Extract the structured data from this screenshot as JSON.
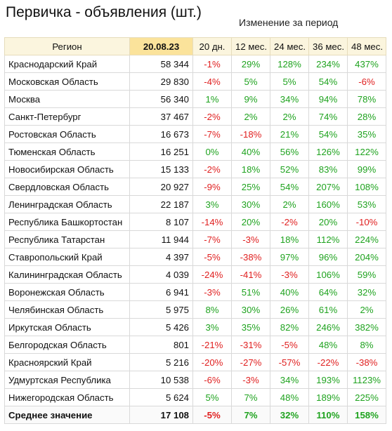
{
  "title": "Первичка - объявления (шт.)",
  "subtitle": "Изменение за период",
  "columns": [
    "Регион",
    "20.08.23",
    "20 дн.",
    "12 мес.",
    "24 мес.",
    "36 мес.",
    "48 мес."
  ],
  "colors": {
    "positive": "#1fa31f",
    "negative": "#e02020",
    "header_bg": "#fbf5de",
    "date_header_bg": "#fbe39b"
  },
  "rows": [
    {
      "region": "Краснодарский Край",
      "count": "58 344",
      "changes": [
        "-1%",
        "29%",
        "128%",
        "234%",
        "437%"
      ]
    },
    {
      "region": "Московская Область",
      "count": "29 830",
      "changes": [
        "-4%",
        "5%",
        "5%",
        "54%",
        "-6%"
      ]
    },
    {
      "region": "Москва",
      "count": "56 340",
      "changes": [
        "1%",
        "9%",
        "34%",
        "94%",
        "78%"
      ]
    },
    {
      "region": "Санкт-Петербург",
      "count": "37 467",
      "changes": [
        "-2%",
        "2%",
        "2%",
        "74%",
        "28%"
      ]
    },
    {
      "region": "Ростовская Область",
      "count": "16 673",
      "changes": [
        "-7%",
        "-18%",
        "21%",
        "54%",
        "35%"
      ]
    },
    {
      "region": "Тюменская Область",
      "count": "16 251",
      "changes": [
        "0%",
        "40%",
        "56%",
        "126%",
        "122%"
      ]
    },
    {
      "region": "Новосибирская Область",
      "count": "15 133",
      "changes": [
        "-2%",
        "18%",
        "52%",
        "83%",
        "99%"
      ]
    },
    {
      "region": "Свердловская Область",
      "count": "20 927",
      "changes": [
        "-9%",
        "25%",
        "54%",
        "207%",
        "108%"
      ]
    },
    {
      "region": "Ленинградская Область",
      "count": "22 187",
      "changes": [
        "3%",
        "30%",
        "2%",
        "160%",
        "53%"
      ]
    },
    {
      "region": "Республика Башкортостан",
      "count": "8 107",
      "changes": [
        "-14%",
        "20%",
        "-2%",
        "20%",
        "-10%"
      ]
    },
    {
      "region": "Республика Татарстан",
      "count": "11 944",
      "changes": [
        "-7%",
        "-3%",
        "18%",
        "112%",
        "224%"
      ]
    },
    {
      "region": "Ставропольский Край",
      "count": "4 397",
      "changes": [
        "-5%",
        "-38%",
        "97%",
        "96%",
        "204%"
      ]
    },
    {
      "region": "Калининградская Область",
      "count": "4 039",
      "changes": [
        "-24%",
        "-41%",
        "-3%",
        "106%",
        "59%"
      ]
    },
    {
      "region": "Воронежская Область",
      "count": "6 941",
      "changes": [
        "-3%",
        "51%",
        "40%",
        "64%",
        "32%"
      ]
    },
    {
      "region": "Челябинская Область",
      "count": "5 975",
      "changes": [
        "8%",
        "30%",
        "26%",
        "61%",
        "2%"
      ]
    },
    {
      "region": "Иркутская Область",
      "count": "5 426",
      "changes": [
        "3%",
        "35%",
        "82%",
        "246%",
        "382%"
      ]
    },
    {
      "region": "Белгородская Область",
      "count": "801",
      "changes": [
        "-21%",
        "-31%",
        "-5%",
        "48%",
        "8%"
      ]
    },
    {
      "region": "Красноярский Край",
      "count": "5 216",
      "changes": [
        "-20%",
        "-27%",
        "-57%",
        "-22%",
        "-38%"
      ]
    },
    {
      "region": "Удмуртская Республика",
      "count": "10 538",
      "changes": [
        "-6%",
        "-3%",
        "34%",
        "193%",
        "1123%"
      ]
    },
    {
      "region": "Нижегородская Область",
      "count": "5 624",
      "changes": [
        "5%",
        "7%",
        "48%",
        "189%",
        "225%"
      ]
    }
  ],
  "average": {
    "region": "Среднее значение",
    "count": "17 108",
    "changes": [
      "-5%",
      "7%",
      "32%",
      "110%",
      "158%"
    ]
  }
}
